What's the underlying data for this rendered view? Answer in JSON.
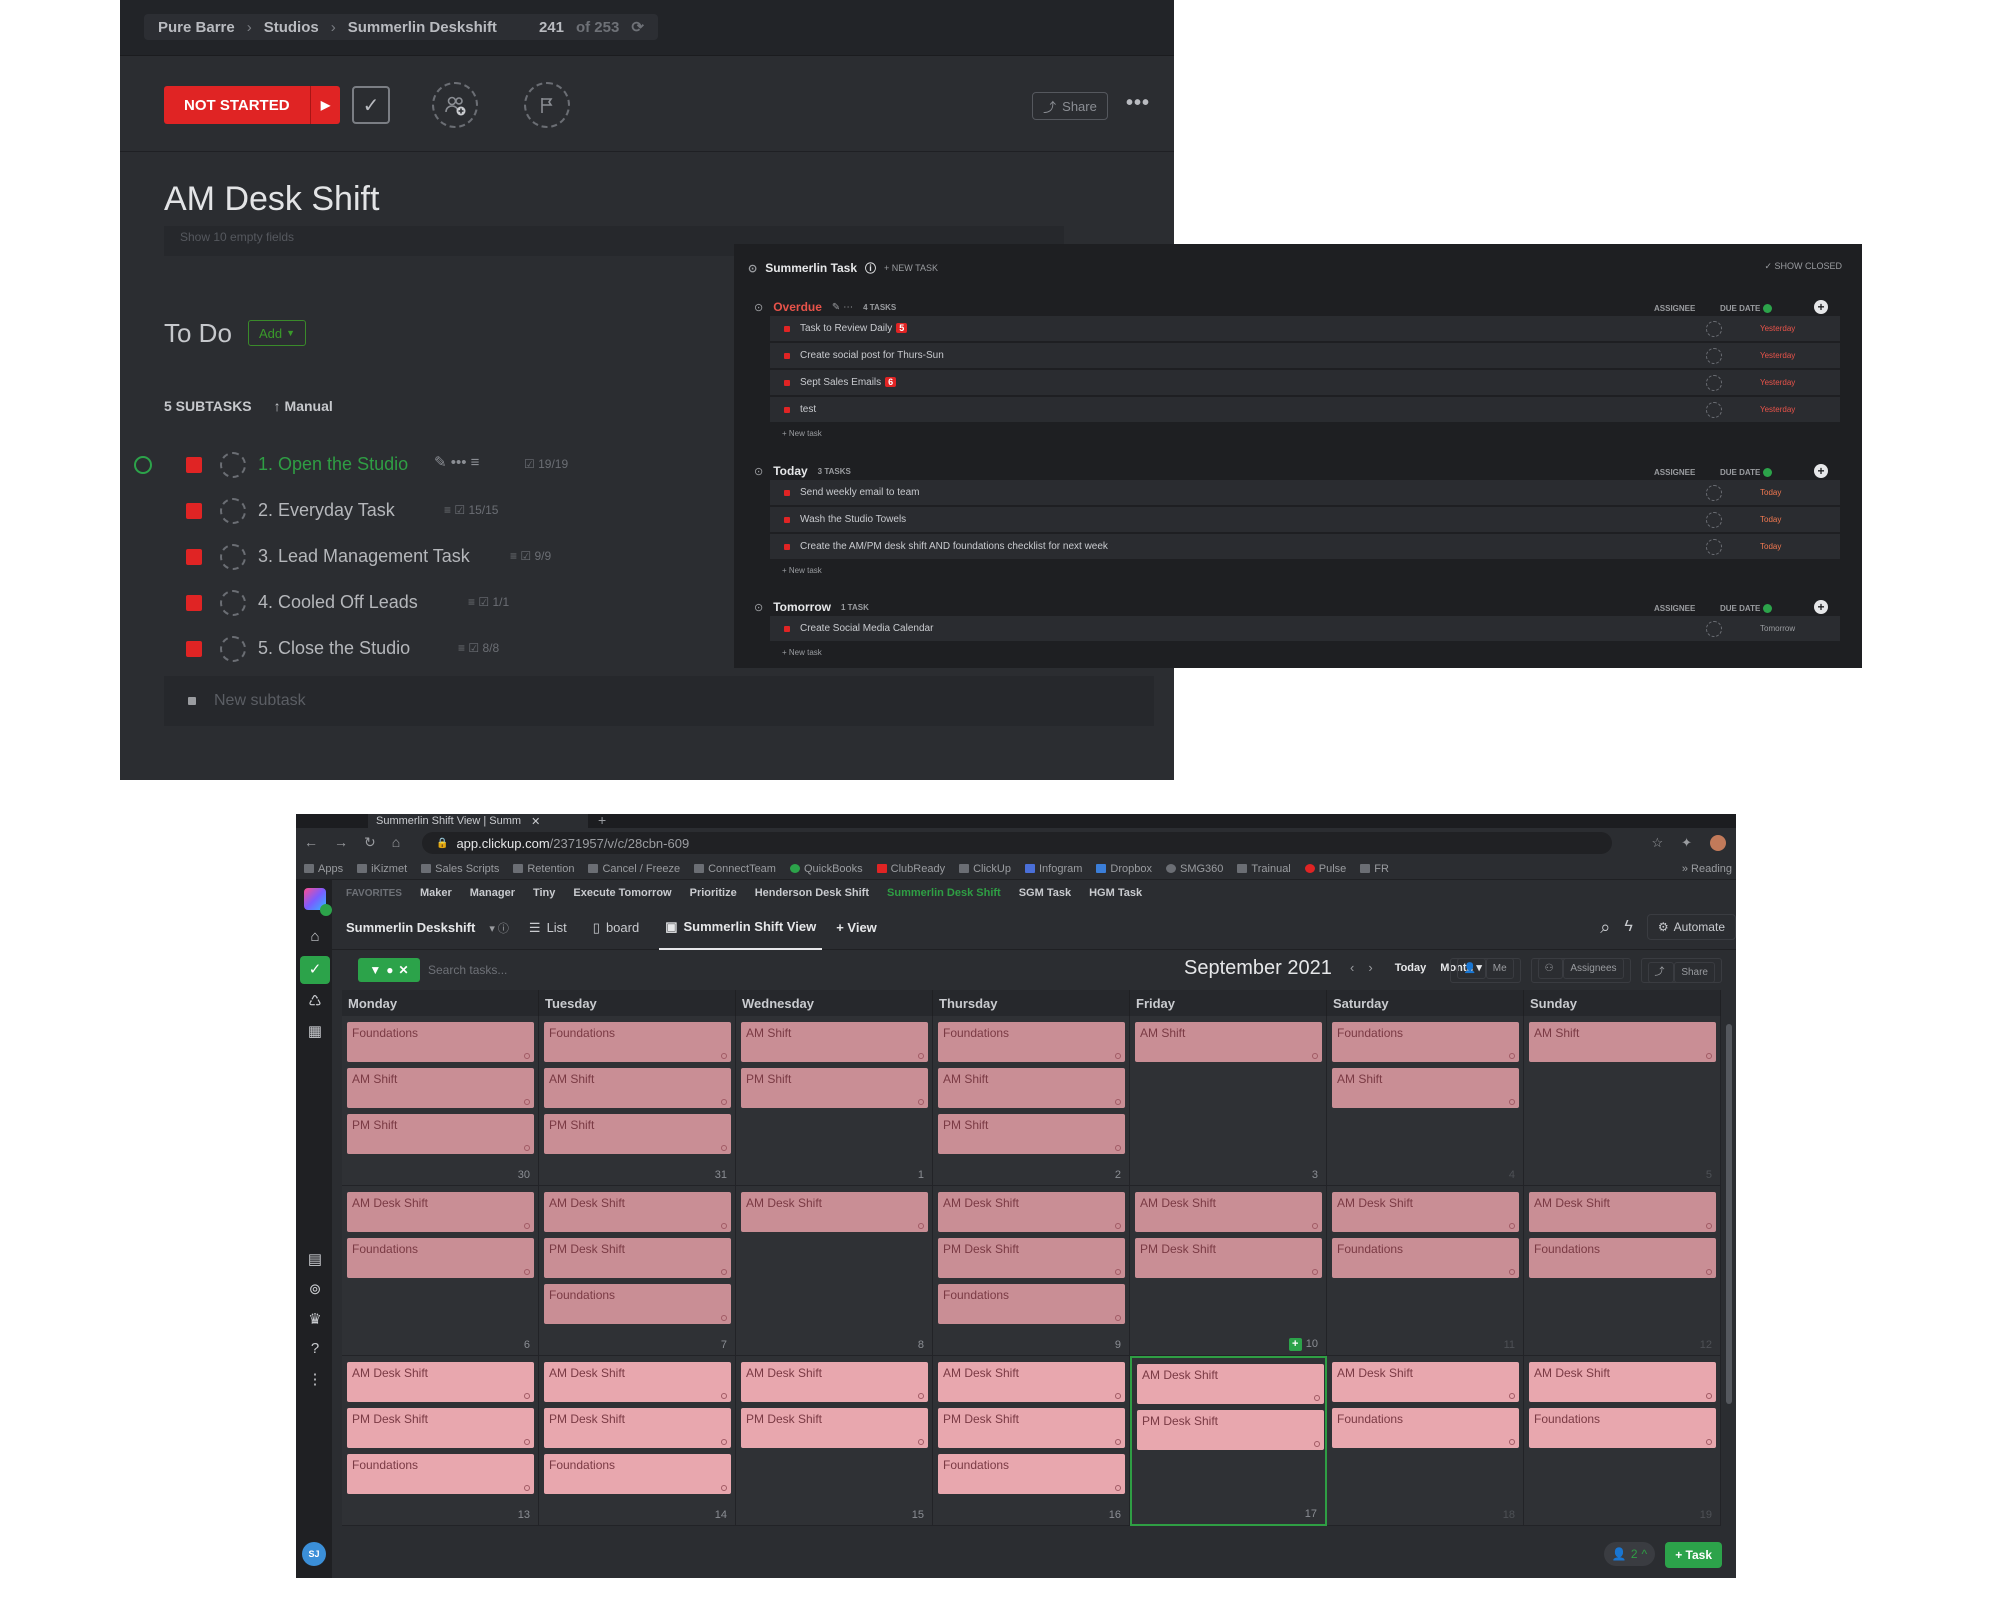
{
  "task_panel": {
    "breadcrumbs": [
      "Pure Barre",
      "Studios",
      "Summerlin Deskshift"
    ],
    "counter": "241",
    "counter_of": "of 253",
    "status_label": "NOT STARTED",
    "share_label": "Share",
    "title": "AM Desk Shift",
    "empty_fields_label": "Show 10 empty fields",
    "todo_label": "To Do",
    "add_label": "Add",
    "subtasks_count_label": "5 SUBTASKS",
    "sort_label": "Manual",
    "subtasks": [
      {
        "name": "1. Open the Studio",
        "check": "19/19"
      },
      {
        "name": "2. Everyday Task",
        "check": "15/15"
      },
      {
        "name": "3. Lead Management Task",
        "check": "9/9"
      },
      {
        "name": "4. Cooled Off Leads",
        "check": "1/1"
      },
      {
        "name": "5. Close the Studio",
        "check": "8/8"
      }
    ],
    "new_subtask_placeholder": "New subtask"
  },
  "list_panel": {
    "title": "Summerlin Task",
    "new_task_label": "+ NEW TASK",
    "show_closed_label": "SHOW CLOSED",
    "assignee_col": "ASSIGNEE",
    "due_col": "DUE DATE",
    "new_task_row": "+ New task",
    "groups": [
      {
        "name": "Overdue",
        "count": "4 TASKS",
        "color": "#e8534a",
        "tasks": [
          {
            "name": "Task to Review Daily",
            "badge": "5",
            "due": "Yesterday"
          },
          {
            "name": "Create social post for Thurs-Sun",
            "badge": "",
            "due": "Yesterday"
          },
          {
            "name": "Sept Sales Emails",
            "badge": "6",
            "due": "Yesterday"
          },
          {
            "name": "test",
            "badge": "",
            "due": "Yesterday"
          }
        ]
      },
      {
        "name": "Today",
        "count": "3 TASKS",
        "color": "#e6e7e9",
        "tasks": [
          {
            "name": "Send weekly email to team",
            "badge": "",
            "due": "Today"
          },
          {
            "name": "Wash the Studio Towels",
            "badge": "",
            "due": "Today"
          },
          {
            "name": "Create the AM/PM desk shift AND foundations checklist for next week",
            "badge": "",
            "due": "Today"
          }
        ]
      },
      {
        "name": "Tomorrow",
        "count": "1 TASK",
        "color": "#e6e7e9",
        "tasks": [
          {
            "name": "Create Social Media Calendar",
            "badge": "",
            "due": "Tomorrow"
          }
        ]
      }
    ]
  },
  "browser": {
    "tab_title": "Summerlin Shift View | Summ",
    "url_host": "app.clickup.com",
    "url_path": "/2371957/v/c/28cbn-609",
    "bookmarks": [
      "Apps",
      "iKizmet",
      "Sales Scripts",
      "Retention",
      "Cancel / Freeze",
      "ConnectTeam",
      "QuickBooks",
      "ClubReady",
      "ClickUp",
      "Infogram",
      "Dropbox",
      "SMG360",
      "Trainual",
      "Pulse",
      "FR"
    ],
    "reading_list": "Reading"
  },
  "app": {
    "favorites_label": "FAVORITES",
    "favorites": [
      "Maker",
      "Manager",
      "Tiny",
      "Execute Tomorrow",
      "Prioritize",
      "Henderson Desk Shift",
      "Summerlin Desk Shift",
      "SGM Task",
      "HGM Task"
    ],
    "active_favorite": "Summerlin Desk Shift",
    "space_name": "Summerlin Deskshift",
    "view_list": "List",
    "view_board": "board",
    "view_active": "Summerlin Shift View",
    "view_add": "+ View",
    "automate_label": "Automate",
    "search_placeholder": "Search tasks...",
    "month_label": "September 2021",
    "today_label": "Today",
    "month_dropdown": "Month",
    "me_label": "Me",
    "assignees_label": "Assignees",
    "share_label": "Share",
    "users_count": "2",
    "task_button": "+ Task",
    "avatar_initials": "SJ"
  },
  "calendar": {
    "days": [
      "Monday",
      "Tuesday",
      "Wednesday",
      "Thursday",
      "Friday",
      "Saturday",
      "Sunday"
    ],
    "weeks": [
      {
        "cells": [
          {
            "num": "30",
            "events": [
              "Foundations",
              "AM Shift",
              "PM Shift"
            ]
          },
          {
            "num": "31",
            "events": [
              "Foundations",
              "AM Shift",
              "PM Shift"
            ]
          },
          {
            "num": "1",
            "events": [
              "AM Shift",
              "PM Shift"
            ]
          },
          {
            "num": "2",
            "events": [
              "Foundations",
              "AM Shift",
              "PM Shift"
            ]
          },
          {
            "num": "3",
            "events": [
              "AM Shift"
            ]
          },
          {
            "num": "4",
            "events": [
              "Foundations",
              "AM Shift"
            ]
          },
          {
            "num": "5",
            "events": [
              "AM Shift"
            ]
          }
        ]
      },
      {
        "cells": [
          {
            "num": "6",
            "events": [
              "AM Desk Shift",
              "Foundations"
            ]
          },
          {
            "num": "7",
            "events": [
              "AM Desk Shift",
              "PM Desk Shift",
              "Foundations"
            ]
          },
          {
            "num": "8",
            "events": [
              "AM Desk Shift"
            ]
          },
          {
            "num": "9",
            "events": [
              "AM Desk Shift",
              "PM Desk Shift",
              "Foundations"
            ]
          },
          {
            "num": "10",
            "events": [
              "AM Desk Shift",
              "PM Desk Shift"
            ]
          },
          {
            "num": "11",
            "events": [
              "AM Desk Shift",
              "Foundations"
            ]
          },
          {
            "num": "12",
            "events": [
              "AM Desk Shift",
              "Foundations"
            ]
          }
        ]
      },
      {
        "cells": [
          {
            "num": "13",
            "events": [
              "AM Desk Shift",
              "PM Desk Shift",
              "Foundations"
            ]
          },
          {
            "num": "14",
            "events": [
              "AM Desk Shift",
              "PM Desk Shift",
              "Foundations"
            ]
          },
          {
            "num": "15",
            "events": [
              "AM Desk Shift",
              "PM Desk Shift"
            ]
          },
          {
            "num": "16",
            "events": [
              "AM Desk Shift",
              "PM Desk Shift",
              "Foundations"
            ]
          },
          {
            "num": "17",
            "events": [
              "AM Desk Shift",
              "PM Desk Shift"
            ]
          },
          {
            "num": "18",
            "events": [
              "AM Desk Shift",
              "Foundations"
            ]
          },
          {
            "num": "19",
            "events": [
              "AM Desk Shift",
              "Foundations"
            ]
          }
        ]
      }
    ]
  }
}
